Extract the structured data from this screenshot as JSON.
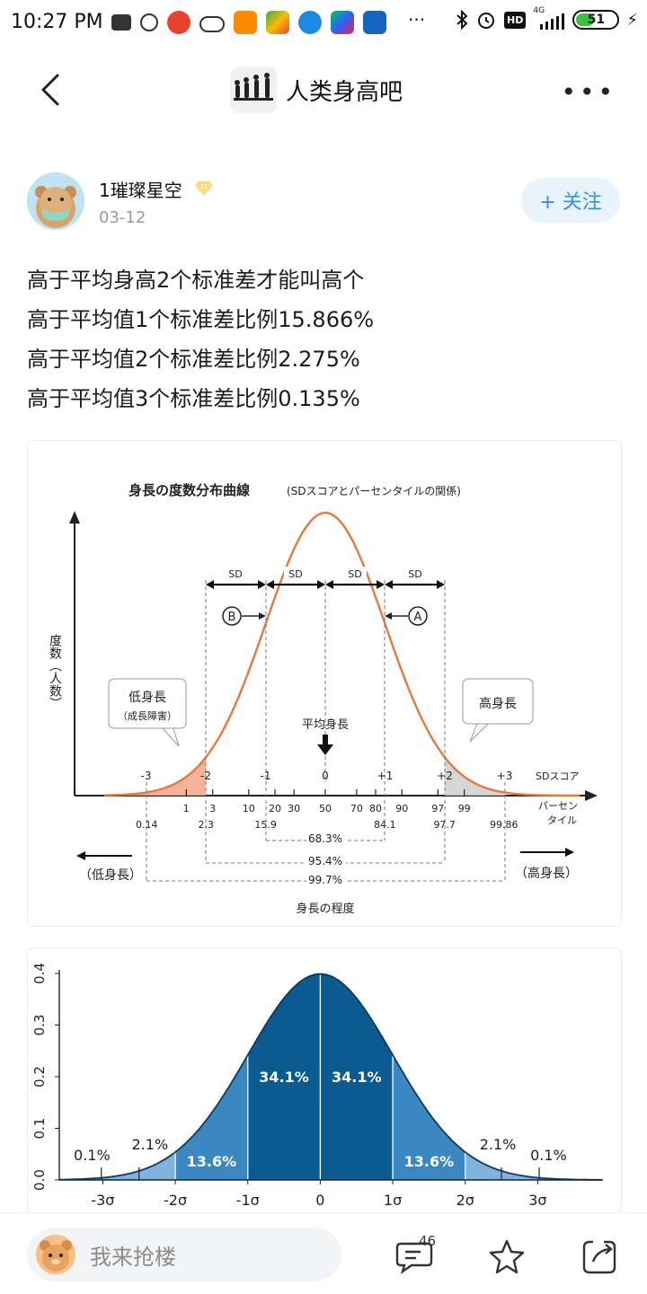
{
  "status_bar": {
    "time": "10:27 PM",
    "network": "4G",
    "battery": "51"
  },
  "nav": {
    "forum_name": "人类身高吧"
  },
  "post": {
    "author": "1璀璨星空",
    "level_badge": "11",
    "date": "03-12",
    "follow_label": "+ 关注",
    "lines": [
      "高于平均身高2个标准差才能叫高个",
      "高于平均值1个标准差比例15.866%",
      "高于平均值2个标准差比例2.275%",
      "高于平均值3个标准差比例0.135%"
    ]
  },
  "figure1": {
    "title": "身長の度数分布曲線",
    "subtitle": "(SDスコアとパーセンタイルの関係)",
    "ylabel": "度数（人数）",
    "sd_label": "SD",
    "marker_b": "B",
    "marker_a": "A",
    "low_label": "低身長",
    "low_sub": "（成長障害）",
    "high_label": "高身長",
    "mean_label": "平均身長",
    "sd_scores": [
      "-3",
      "-2",
      "-1",
      "0",
      "+1",
      "+2",
      "+3"
    ],
    "sd_axis_label": "SDスコア",
    "percentiles_top": [
      "1",
      "3",
      "10",
      "20",
      "30",
      "50",
      "70",
      "80",
      "90",
      "97",
      "99"
    ],
    "percentiles_bottom": [
      "0.14",
      "2.3",
      "15.9",
      "84.1",
      "97.7",
      "99.86"
    ],
    "percentile_axis_label_1": "パーセン",
    "percentile_axis_label_2": "タイル",
    "pct_68": "68.3%",
    "pct_95": "95.4%",
    "pct_99": "99.7%",
    "left_arrow_label": "（低身長）",
    "right_arrow_label": "（高身長）",
    "xlabel": "身長の程度"
  },
  "chart_data": {
    "type": "area",
    "title": "",
    "xlabel": "",
    "ylabel": "",
    "xlim": [
      -3.6,
      3.9
    ],
    "ylim": [
      0,
      0.4
    ],
    "yticks": [
      "0.0",
      "0.1",
      "0.2",
      "0.3",
      "0.4"
    ],
    "xticks": [
      "-3σ",
      "-2σ",
      "-1σ",
      "0",
      "1σ",
      "2σ",
      "3σ"
    ],
    "xtick_values": [
      -3,
      -2,
      -1,
      0,
      1,
      2,
      3
    ],
    "band_labels": [
      "0.1%",
      "2.1%",
      "13.6%",
      "34.1%",
      "34.1%",
      "13.6%",
      "2.1%",
      "0.1%"
    ],
    "colors": {
      "outer": "#7fb2dc",
      "mid": "#3a87c2",
      "center": "#0b5a90",
      "line": "#0d3a5c"
    }
  },
  "bottom_bar": {
    "reply_placeholder": "我来抢楼",
    "comment_count": "46"
  }
}
